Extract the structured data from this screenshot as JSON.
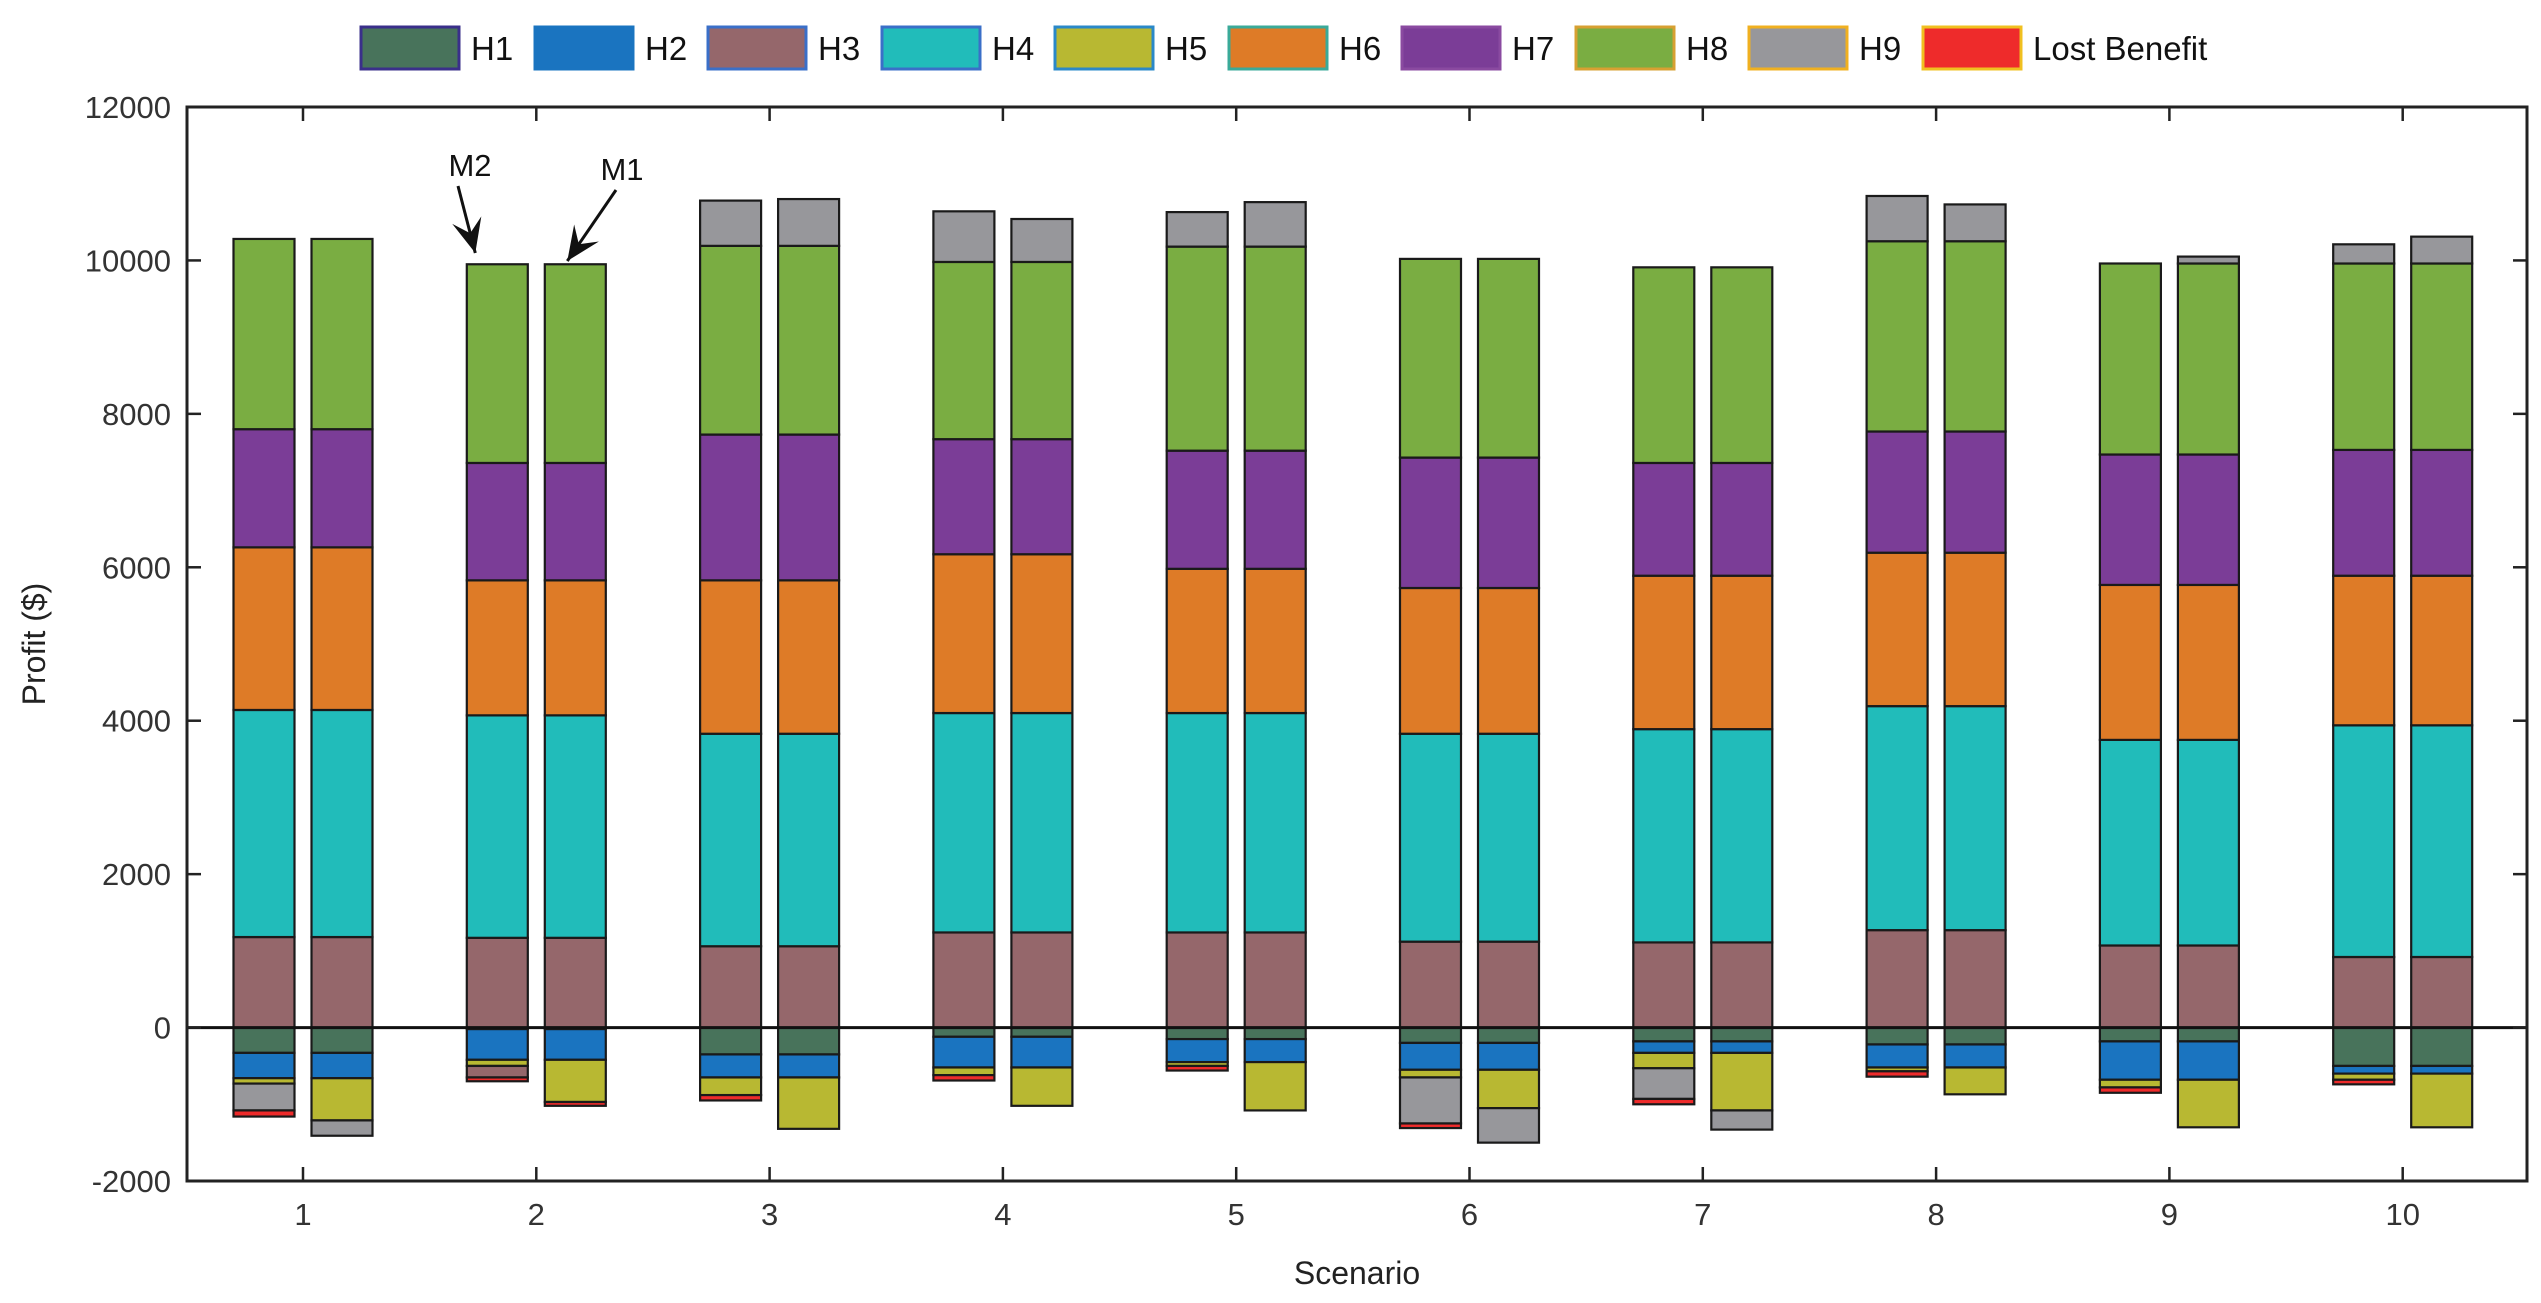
{
  "chart_data": {
    "type": "bar",
    "stacked": true,
    "xlabel": "Scenario",
    "ylabel": "Profit ($)",
    "ylim": [
      -2000,
      12000
    ],
    "yticks": [
      -2000,
      0,
      2000,
      4000,
      6000,
      8000,
      10000,
      12000
    ],
    "categories": [
      "1",
      "2",
      "3",
      "4",
      "5",
      "6",
      "7",
      "8",
      "9",
      "10"
    ],
    "bars_per_category": [
      "M2",
      "M1"
    ],
    "legend": [
      "H1",
      "H2",
      "H3",
      "H4",
      "H5",
      "H6",
      "H7",
      "H8",
      "H9",
      "Lost Benefit"
    ],
    "legend_position": "top-outside",
    "colors": {
      "H1": "#48735b",
      "H2": "#1a74c0",
      "H3": "#95676b",
      "H4": "#21bcba",
      "H5": "#b8b832",
      "H6": "#de7b27",
      "H7": "#7b3d97",
      "H8": "#7aad42",
      "H9": "#97979b",
      "Lost Benefit": "#ee2b2b"
    },
    "legend_edge_colors": {
      "H1": "#3a2f8a",
      "H2": "#1a74c0",
      "H3": "#3a6fc8",
      "H4": "#3a6fc8",
      "H5": "#2a88c8",
      "H6": "#3aaa99",
      "H7": "#8a4aa0",
      "H8": "#d7a032",
      "H9": "#f0b020",
      "Lost Benefit": "#f0c020"
    },
    "positive_stack_order": [
      "H3",
      "H4",
      "H6",
      "H7",
      "H8",
      "H9"
    ],
    "negative_stack_order": [
      "H1",
      "H2",
      "H5",
      "H3",
      "H9",
      "Lost Benefit"
    ],
    "series": [
      {
        "name": "H1",
        "values": [
          [
            -330,
            -330
          ],
          [
            -20,
            -20
          ],
          [
            -350,
            -350
          ],
          [
            -120,
            -120
          ],
          [
            -150,
            -150
          ],
          [
            -200,
            -200
          ],
          [
            -180,
            -180
          ],
          [
            -220,
            -220
          ],
          [
            -180,
            -180
          ],
          [
            -500,
            -500
          ]
        ]
      },
      {
        "name": "H2",
        "values": [
          [
            -330,
            -330
          ],
          [
            -400,
            -400
          ],
          [
            -300,
            -300
          ],
          [
            -400,
            -400
          ],
          [
            -300,
            -300
          ],
          [
            -350,
            -350
          ],
          [
            -150,
            -150
          ],
          [
            -300,
            -300
          ],
          [
            -500,
            -500
          ],
          [
            -100,
            -100
          ]
        ]
      },
      {
        "name": "H3",
        "values": [
          [
            1180,
            1180
          ],
          [
            1170,
            1170
          ],
          [
            1060,
            1060
          ],
          [
            1240,
            1240
          ],
          [
            1240,
            1240
          ],
          [
            1120,
            1120
          ],
          [
            1110,
            1110
          ],
          [
            1270,
            1270
          ],
          [
            1070,
            1070
          ],
          [
            920,
            920
          ]
        ]
      },
      {
        "name": "H4",
        "values": [
          [
            2960,
            2960
          ],
          [
            2900,
            2900
          ],
          [
            2770,
            2770
          ],
          [
            2860,
            2860
          ],
          [
            2860,
            2860
          ],
          [
            2710,
            2710
          ],
          [
            2780,
            2780
          ],
          [
            2920,
            2920
          ],
          [
            2680,
            2680
          ],
          [
            3020,
            3020
          ]
        ]
      },
      {
        "name": "H5",
        "values": [
          [
            -70,
            -550
          ],
          [
            -80,
            -550
          ],
          [
            -230,
            -670
          ],
          [
            -100,
            -500
          ],
          [
            -50,
            -630
          ],
          [
            -100,
            -500
          ],
          [
            -200,
            -750
          ],
          [
            -50,
            -350
          ],
          [
            -100,
            -620
          ],
          [
            -80,
            -700
          ]
        ]
      },
      {
        "name": "H6",
        "values": [
          [
            2120,
            2120
          ],
          [
            1760,
            1760
          ],
          [
            2000,
            2000
          ],
          [
            2070,
            2070
          ],
          [
            1880,
            1880
          ],
          [
            1900,
            1900
          ],
          [
            2000,
            2000
          ],
          [
            2000,
            2000
          ],
          [
            2020,
            2020
          ],
          [
            1950,
            1950
          ]
        ]
      },
      {
        "name": "H7",
        "values": [
          [
            1540,
            1540
          ],
          [
            1530,
            1530
          ],
          [
            1900,
            1900
          ],
          [
            1500,
            1500
          ],
          [
            1540,
            1540
          ],
          [
            1700,
            1700
          ],
          [
            1470,
            1470
          ],
          [
            1580,
            1580
          ],
          [
            1700,
            1700
          ],
          [
            1640,
            1640
          ]
        ]
      },
      {
        "name": "H8",
        "values": [
          [
            2480,
            2480
          ],
          [
            2590,
            2590
          ],
          [
            2460,
            2460
          ],
          [
            2310,
            2310
          ],
          [
            2660,
            2660
          ],
          [
            2590,
            2590
          ],
          [
            2550,
            2550
          ],
          [
            2480,
            2480
          ],
          [
            2490,
            2490
          ],
          [
            2430,
            2430
          ]
        ]
      },
      {
        "name": "H9",
        "values": [
          [
            0,
            0
          ],
          [
            0,
            0
          ],
          [
            590,
            610
          ],
          [
            660,
            560
          ],
          [
            450,
            580
          ],
          [
            0,
            0
          ],
          [
            0,
            0
          ],
          [
            590,
            480
          ],
          [
            0,
            90
          ],
          [
            250,
            350
          ]
        ]
      },
      {
        "name": "H3 (negative)",
        "values": [
          [
            0,
            0
          ],
          [
            -150,
            0
          ],
          [
            0,
            0
          ],
          [
            0,
            0
          ],
          [
            0,
            0
          ],
          [
            0,
            0
          ],
          [
            0,
            0
          ],
          [
            0,
            0
          ],
          [
            0,
            0
          ],
          [
            0,
            0
          ]
        ]
      },
      {
        "name": "H9 (negative)",
        "values": [
          [
            -350,
            -200
          ],
          [
            0,
            0
          ],
          [
            0,
            0
          ],
          [
            0,
            0
          ],
          [
            0,
            0
          ],
          [
            -600,
            -450
          ],
          [
            -400,
            -250
          ],
          [
            0,
            0
          ],
          [
            0,
            0
          ],
          [
            0,
            0
          ]
        ]
      },
      {
        "name": "Lost Benefit",
        "values": [
          [
            -80,
            0
          ],
          [
            -50,
            -50
          ],
          [
            -70,
            0
          ],
          [
            -70,
            0
          ],
          [
            -60,
            0
          ],
          [
            -60,
            0
          ],
          [
            -70,
            0
          ],
          [
            -70,
            0
          ],
          [
            -70,
            0
          ],
          [
            -60,
            0
          ]
        ]
      }
    ],
    "annotations": [
      {
        "text": "M2",
        "category": "2",
        "bar": 0
      },
      {
        "text": "M1",
        "category": "2",
        "bar": 1
      }
    ]
  }
}
